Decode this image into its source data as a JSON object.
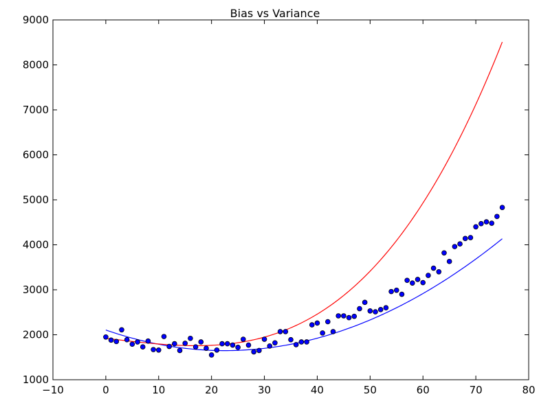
{
  "chart_data": {
    "type": "scatter",
    "title": "Bias vs Variance",
    "xlabel": "",
    "ylabel": "",
    "xlim": [
      -10,
      80
    ],
    "ylim": [
      1000,
      9000
    ],
    "xticks": [
      -10,
      0,
      10,
      20,
      30,
      40,
      50,
      60,
      70,
      80
    ],
    "yticks": [
      1000,
      2000,
      3000,
      4000,
      5000,
      6000,
      7000,
      8000,
      9000
    ],
    "grid": false,
    "legend": "none",
    "points": {
      "color": "#0000ff",
      "x": [
        0,
        1,
        2,
        3,
        4,
        5,
        6,
        7,
        8,
        9,
        10,
        11,
        12,
        13,
        14,
        15,
        16,
        17,
        18,
        19,
        20,
        21,
        22,
        23,
        24,
        25,
        26,
        27,
        28,
        29,
        30,
        31,
        32,
        33,
        34,
        35,
        36,
        37,
        38,
        39,
        40,
        41,
        42,
        43,
        44,
        45,
        46,
        47,
        48,
        49,
        50,
        51,
        52,
        53,
        54,
        55,
        56,
        57,
        58,
        59,
        60,
        61,
        62,
        63,
        64,
        65,
        66,
        67,
        68,
        69,
        70,
        71,
        72,
        73,
        74,
        75
      ],
      "y": [
        1950,
        1880,
        1850,
        2110,
        1890,
        1790,
        1840,
        1730,
        1860,
        1670,
        1660,
        1960,
        1740,
        1800,
        1650,
        1810,
        1920,
        1730,
        1840,
        1700,
        1550,
        1660,
        1800,
        1800,
        1770,
        1720,
        1900,
        1770,
        1620,
        1650,
        1900,
        1750,
        1820,
        2070,
        2070,
        1890,
        1780,
        1840,
        1840,
        2220,
        2260,
        2040,
        2290,
        2070,
        2420,
        2420,
        2380,
        2410,
        2580,
        2720,
        2530,
        2510,
        2560,
        2600,
        2960,
        2990,
        2900,
        3210,
        3150,
        3230,
        3160,
        3320,
        3480,
        3400,
        3820,
        3630,
        3960,
        4020,
        4140,
        4160,
        4400,
        4470,
        4510,
        4480,
        4630,
        4830
      ]
    },
    "series": [
      {
        "color": "#0000ff",
        "coefficients": [
          2105,
          -40.66,
          0.903
        ],
        "x_range": [
          0,
          75
        ]
      },
      {
        "color": "#ff0000",
        "coefficients": [
          1920,
          -13.5,
          -0.1,
          0.01935
        ],
        "x_range": [
          0,
          75
        ]
      }
    ]
  }
}
